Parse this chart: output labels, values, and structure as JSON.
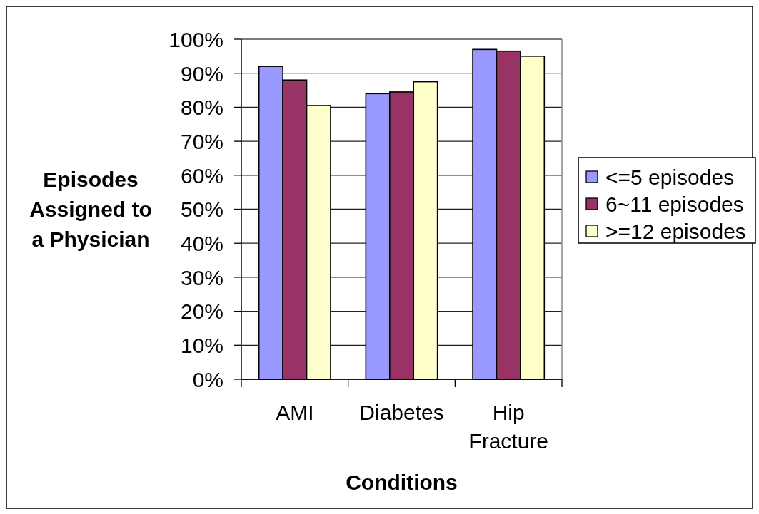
{
  "chart_data": {
    "type": "bar",
    "xlabel": "Conditions",
    "ylabel": "Episodes Assigned to a Physician",
    "categories": [
      "AMI",
      "Diabetes",
      "Hip Fracture"
    ],
    "series": [
      {
        "name": "<=5 episodes",
        "color": "#9999ff",
        "values": [
          92,
          84,
          97
        ]
      },
      {
        "name": "6~11 episodes",
        "color": "#993366",
        "values": [
          88,
          84.5,
          96.5
        ]
      },
      {
        "name": ">=12 episodes",
        "color": "#ffffcc",
        "values": [
          80.5,
          87.5,
          95
        ]
      }
    ],
    "ylim": [
      0,
      100
    ],
    "yticks": [
      {
        "value": 0,
        "label": "0%"
      },
      {
        "value": 10,
        "label": "10%"
      },
      {
        "value": 20,
        "label": "20%"
      },
      {
        "value": 30,
        "label": "30%"
      },
      {
        "value": 40,
        "label": "40%"
      },
      {
        "value": 50,
        "label": "50%"
      },
      {
        "value": 60,
        "label": "60%"
      },
      {
        "value": 70,
        "label": "70%"
      },
      {
        "value": 80,
        "label": "80%"
      },
      {
        "value": 90,
        "label": "90%"
      },
      {
        "value": 100,
        "label": "100%"
      }
    ],
    "grid": "y",
    "legend": "right"
  }
}
